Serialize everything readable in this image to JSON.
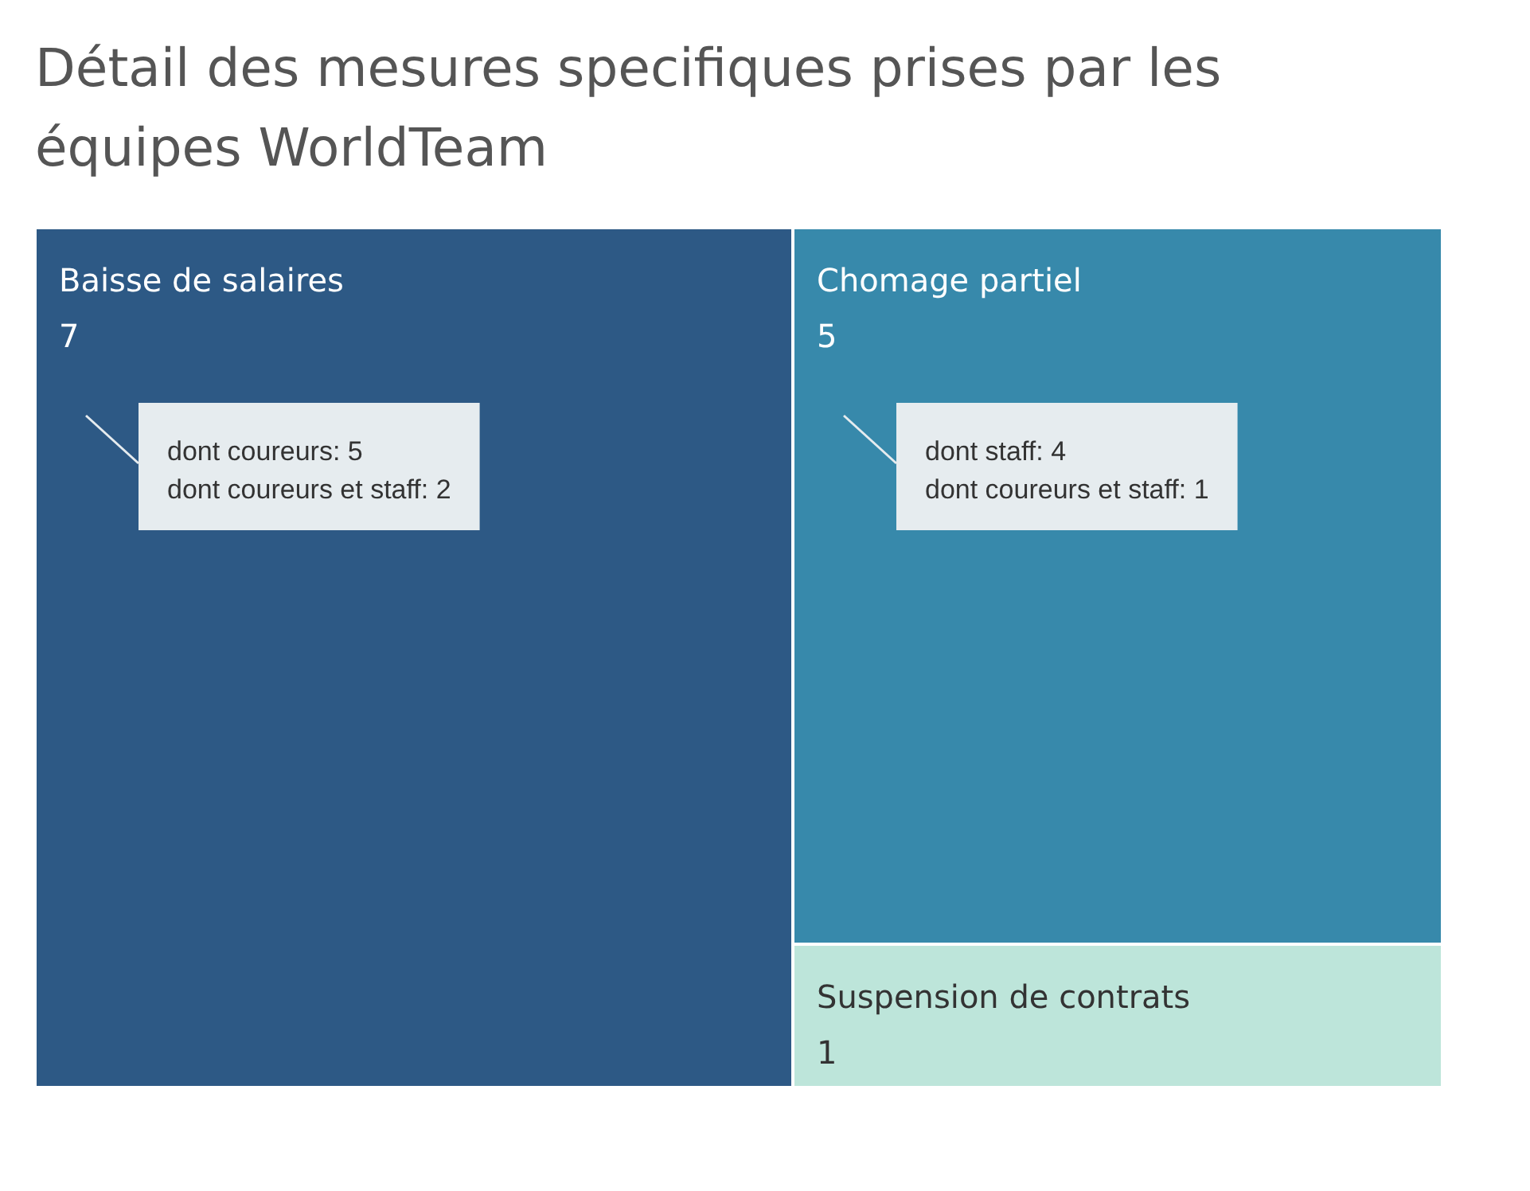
{
  "chart_data": {
    "type": "other",
    "title": "Détail des mesures specifiques prises par les équipes WorldTeam",
    "categories": [
      "Baisse de salaires",
      "Chomage partiel",
      "Suspension de contrats"
    ],
    "values": [
      7,
      5,
      1
    ],
    "data_labels": true,
    "colors": [
      "#2d5985",
      "#3789ab",
      "#bde5da"
    ],
    "annotations": [
      "dont coureurs: 5\ndont coureurs et staff: 2",
      "dont staff: 4\ndont coureurs et staff: 1"
    ]
  }
}
